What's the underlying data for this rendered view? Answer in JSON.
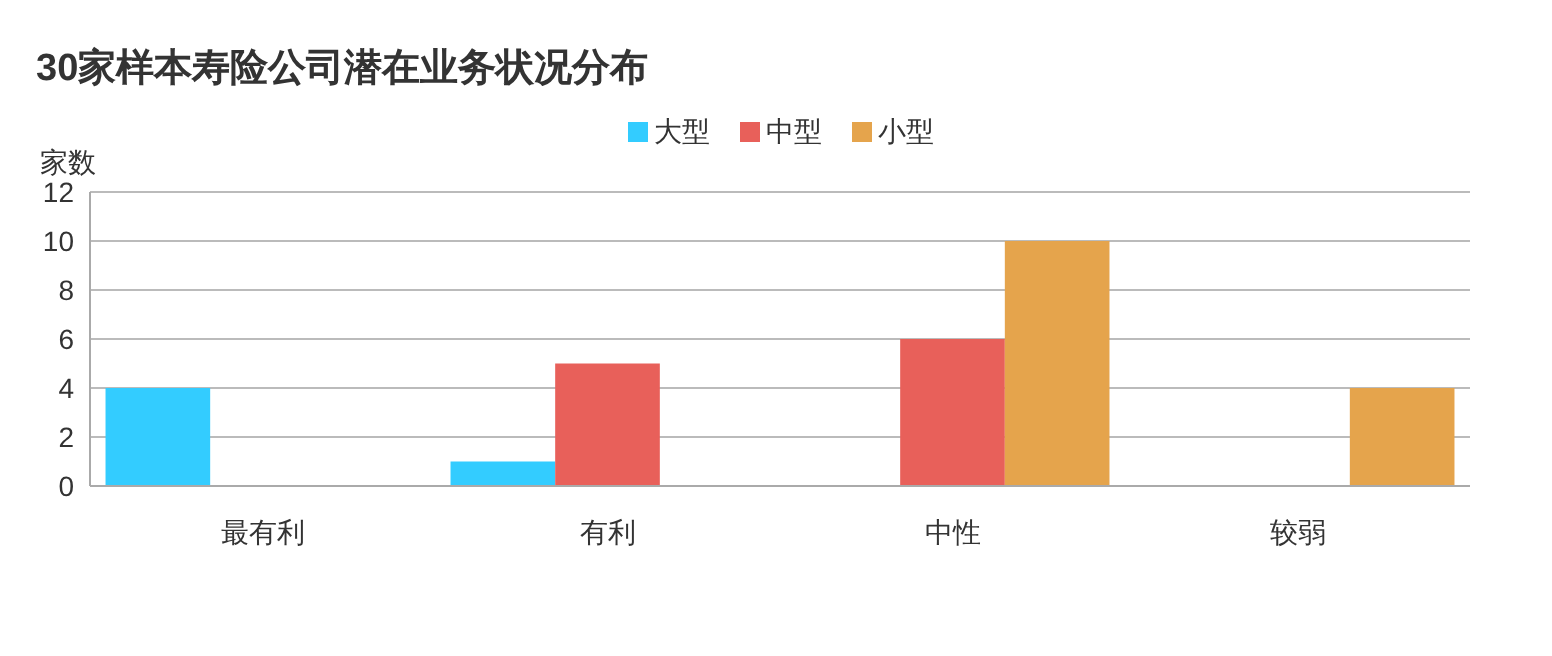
{
  "chart_data": {
    "type": "bar",
    "title": "30家样本寿险公司潜在业务状况分布",
    "ylabel": "家数",
    "categories": [
      "最有利",
      "有利",
      "中性",
      "较弱"
    ],
    "series": [
      {
        "name": "大型",
        "color": "#33ccff",
        "values": [
          4,
          1,
          0,
          0
        ]
      },
      {
        "name": "中型",
        "color": "#e8605a",
        "values": [
          0,
          5,
          6,
          0
        ]
      },
      {
        "name": "小型",
        "color": "#e5a44c",
        "values": [
          0,
          0,
          10,
          4
        ]
      }
    ],
    "ylim": [
      0,
      12
    ],
    "yticks": [
      0,
      2,
      4,
      6,
      8,
      10,
      12
    ],
    "grid": "y",
    "legend": "top"
  }
}
